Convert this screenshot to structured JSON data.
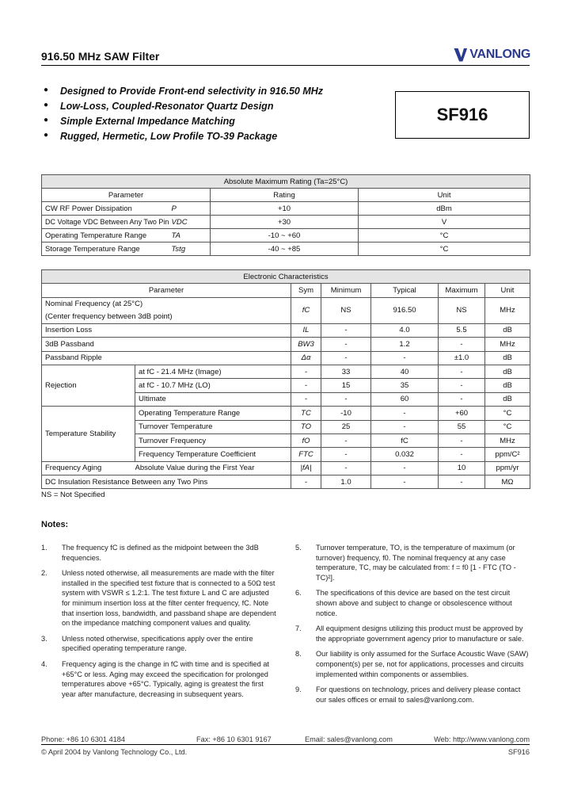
{
  "header": {
    "title": "916.50 MHz SAW Filter",
    "logo": "VANLONG",
    "logo_color": "#2b3a8e"
  },
  "features": [
    "Designed to Provide Front-end selectivity in 916.50 MHz",
    "Low-Loss, Coupled-Resonator Quartz Design",
    "Simple External Impedance Matching",
    "Rugged, Hermetic, Low Profile TO-39 Package"
  ],
  "part_number": "SF916",
  "abs_max": {
    "title": "Absolute Maximum Rating (Ta=25°C)",
    "columns": [
      "Parameter",
      "Rating",
      "Unit"
    ],
    "rows": [
      {
        "param": "CW RF Power Dissipation",
        "sym": "P",
        "rating": "+10",
        "unit": "dBm"
      },
      {
        "param": "DC Voltage VDC Between Any Two Pins",
        "sym": "VDC",
        "rating": "+30",
        "unit": "V"
      },
      {
        "param": "Operating Temperature Range",
        "sym": "TA",
        "rating": "-10 ~ +60",
        "unit": "°C"
      },
      {
        "param": "Storage Temperature Range",
        "sym": "Tstg",
        "rating": "-40 ~ +85",
        "unit": "°C"
      }
    ]
  },
  "elec": {
    "title": "Electronic Characteristics",
    "columns": [
      "Parameter",
      "Sym",
      "Minimum",
      "Typical",
      "Maximum",
      "Unit"
    ],
    "nominal": {
      "param1": "Nominal Frequency (at 25°C)",
      "param2": "(Center frequency between 3dB point)",
      "sym": "fC",
      "min": "NS",
      "typ": "916.50",
      "max": "NS",
      "unit": "MHz"
    },
    "rows": [
      {
        "param": "Insertion Loss",
        "sym": "IL",
        "min": "-",
        "typ": "4.0",
        "max": "5.5",
        "unit": "dB"
      },
      {
        "param": "3dB Passband",
        "sym": "BW3",
        "min": "-",
        "typ": "1.2",
        "max": "-",
        "unit": "MHz"
      },
      {
        "param": "Passband Ripple",
        "sym": "Δα",
        "min": "-",
        "typ": "-",
        "max": "±1.0",
        "unit": "dB"
      }
    ],
    "rejection": {
      "label": "Rejection",
      "rows": [
        {
          "param": "at fC - 21.4 MHz (Image)",
          "sym": "-",
          "min": "33",
          "typ": "40",
          "max": "-",
          "unit": "dB"
        },
        {
          "param": "at fC - 10.7 MHz (LO)",
          "sym": "-",
          "min": "15",
          "typ": "35",
          "max": "-",
          "unit": "dB"
        },
        {
          "param": "Ultimate",
          "sym": "-",
          "min": "-",
          "typ": "60",
          "max": "-",
          "unit": "dB"
        }
      ]
    },
    "temp": {
      "label": "Temperature Stability",
      "rows": [
        {
          "param": "Operating Temperature Range",
          "sym": "TC",
          "min": "-10",
          "typ": "-",
          "max": "+60",
          "unit": "°C"
        },
        {
          "param": "Turnover Temperature",
          "sym": "TO",
          "min": "25",
          "typ": "-",
          "max": "55",
          "unit": "°C"
        },
        {
          "param": "Turnover Frequency",
          "sym": "fO",
          "min": "-",
          "typ": "fC",
          "max": "-",
          "unit": "MHz"
        },
        {
          "param": "Frequency Temperature Coefficient",
          "sym": "FTC",
          "min": "-",
          "typ": "0.032",
          "max": "-",
          "unit": "ppm/C²"
        }
      ]
    },
    "aging": {
      "param1": "Frequency Aging",
      "param2": "Absolute Value during the First Year",
      "sym": "|fA|",
      "min": "-",
      "typ": "-",
      "max": "10",
      "unit": "ppm/yr"
    },
    "insulation": {
      "param": "DC Insulation Resistance Between any Two Pins",
      "sym": "-",
      "min": "1.0",
      "typ": "-",
      "max": "-",
      "unit": "MΩ"
    },
    "footnote": "NS = Not Specified"
  },
  "notes": {
    "heading": "Notes:",
    "items": [
      {
        "n": "1.",
        "text": "The frequency fC is defined as the midpoint between the 3dB frequencies."
      },
      {
        "n": "2.",
        "text": "Unless noted otherwise, all measurements are made with the filter installed in the specified test fixture that is connected to a 50Ω test system with VSWR ≤ 1.2:1. The test fixture L and C are adjusted for minimum insertion loss at the filter center frequency, fC. Note that insertion loss, bandwidth, and passband shape are dependent on the impedance matching component values and quality."
      },
      {
        "n": "3.",
        "text": "Unless noted otherwise, specifications apply over the entire specified operating temperature range."
      },
      {
        "n": "4.",
        "text": "Frequency aging is the change in fC with time and is specified at +65°C or less. Aging may exceed the specification for prolonged temperatures above +65°C. Typically, aging is greatest the first year after manufacture, decreasing in subsequent years."
      },
      {
        "n": "5.",
        "text": "Turnover temperature, TO, is the temperature of maximum (or turnover) frequency, f0. The nominal frequency at any case temperature, TC, may be calculated from: f = f0 [1 - FTC (TO - TC)²]."
      },
      {
        "n": "6.",
        "text": "The specifications of this device are based on the test circuit shown above and subject to change or obsolescence without notice."
      },
      {
        "n": "7.",
        "text": "All equipment designs utilizing this product must be approved by the appropriate government agency prior to manufacture or sale."
      },
      {
        "n": "8.",
        "text": "Our liability is only assumed for the Surface Acoustic Wave (SAW) component(s) per se, not for applications, processes and circuits implemented within components or assemblies."
      },
      {
        "n": "9.",
        "text": "For questions on technology, prices and delivery please contact our sales offices or email to sales@vanlong.com."
      }
    ]
  },
  "footer": {
    "phone": "Phone: +86 10 6301 4184",
    "fax": "Fax: +86 10 6301 9167",
    "email": "Email: sales@vanlong.com",
    "web": "Web: http://www.vanlong.com",
    "copyright": "© April 2004 by Vanlong Technology Co., Ltd.",
    "part": "SF916"
  }
}
